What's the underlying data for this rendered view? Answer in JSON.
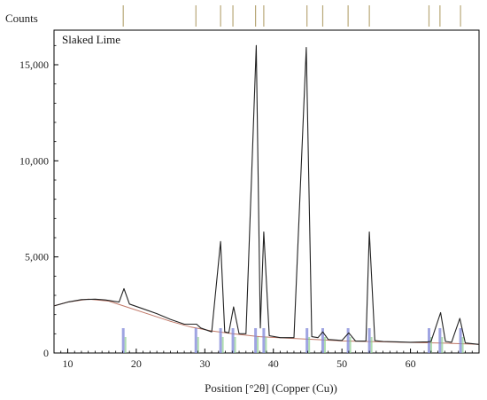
{
  "chart_data": {
    "type": "line",
    "title": "Slaked Lime",
    "ylabel": "Counts",
    "xlabel": "Position [°2θ] (Copper (Cu))",
    "xlim": [
      8,
      70
    ],
    "ylim": [
      0,
      16800
    ],
    "x_ticks": [
      10,
      20,
      30,
      40,
      50,
      60
    ],
    "y_ticks": [
      0,
      5000,
      10000,
      15000
    ],
    "y_tick_labels": [
      "0",
      "5,000",
      "10,000",
      "15,000"
    ],
    "grid": false,
    "legend": "none",
    "colors": {
      "pattern": "#222222",
      "background_fit": "#c07868",
      "axes": "#000000",
      "reference_marks": "#b8a878"
    },
    "series": [
      {
        "points": [
          [
            8,
            2450
          ],
          [
            10,
            2650
          ],
          [
            12,
            2780
          ],
          [
            14,
            2800
          ],
          [
            15.5,
            2760
          ],
          [
            17.5,
            2650
          ],
          [
            18.2,
            3350
          ],
          [
            19,
            2550
          ],
          [
            21,
            2300
          ],
          [
            23,
            2050
          ],
          [
            25,
            1750
          ],
          [
            27,
            1500
          ],
          [
            28.8,
            1500
          ],
          [
            29.4,
            1300
          ],
          [
            31,
            1100
          ],
          [
            32.3,
            5800
          ],
          [
            32.9,
            1100
          ],
          [
            33.5,
            1050
          ],
          [
            34.2,
            2400
          ],
          [
            35,
            1000
          ],
          [
            36,
            1000
          ],
          [
            37.5,
            16000
          ],
          [
            38.1,
            1300
          ],
          [
            38.6,
            6300
          ],
          [
            39.4,
            900
          ],
          [
            41,
            800
          ],
          [
            43,
            800
          ],
          [
            44.8,
            15900
          ],
          [
            45.6,
            850
          ],
          [
            46.5,
            800
          ],
          [
            47.2,
            1100
          ],
          [
            48,
            700
          ],
          [
            50,
            650
          ],
          [
            51,
            1050
          ],
          [
            52,
            620
          ],
          [
            53.5,
            620
          ],
          [
            54,
            6300
          ],
          [
            54.8,
            640
          ],
          [
            56,
            600
          ],
          [
            58,
            580
          ],
          [
            60,
            560
          ],
          [
            62.5,
            580
          ],
          [
            63,
            600
          ],
          [
            64.4,
            2100
          ],
          [
            65.1,
            600
          ],
          [
            66,
            560
          ],
          [
            67.2,
            1800
          ],
          [
            68,
            520
          ],
          [
            70,
            450
          ]
        ]
      }
    ],
    "background_curve": [
      [
        8,
        2450
      ],
      [
        10,
        2650
      ],
      [
        13,
        2800
      ],
      [
        16,
        2700
      ],
      [
        19,
        2350
      ],
      [
        22,
        2000
      ],
      [
        25,
        1650
      ],
      [
        28,
        1350
      ],
      [
        31,
        1150
      ],
      [
        34,
        1000
      ],
      [
        38,
        850
      ],
      [
        42,
        770
      ],
      [
        46,
        700
      ],
      [
        50,
        630
      ],
      [
        55,
        590
      ],
      [
        60,
        550
      ],
      [
        65,
        510
      ],
      [
        70,
        450
      ]
    ],
    "reference_peak_positions": [
      18.1,
      28.7,
      32.3,
      34.1,
      37.4,
      38.6,
      44.9,
      47.2,
      50.9,
      54.0,
      62.7,
      64.3,
      67.3
    ]
  }
}
